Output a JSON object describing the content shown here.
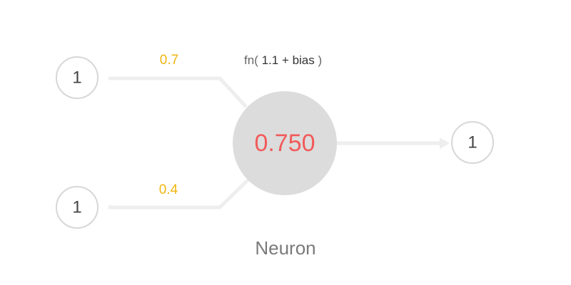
{
  "colors": {
    "wire": "#eeeeee",
    "node_border": "#d7d7d7",
    "neuron_fill": "#dcdcdc",
    "neuron_value": "#f25a5a",
    "weight": "#f2b50f"
  },
  "inputs": [
    {
      "value": "1",
      "weight": "0.7"
    },
    {
      "value": "1",
      "weight": "0.4"
    }
  ],
  "formula": {
    "prefix": "fn( ",
    "expression": "1.1 + bias",
    "suffix": " )"
  },
  "neuron": {
    "value": "0.750",
    "label": "Neuron"
  },
  "output": {
    "value": "1"
  }
}
